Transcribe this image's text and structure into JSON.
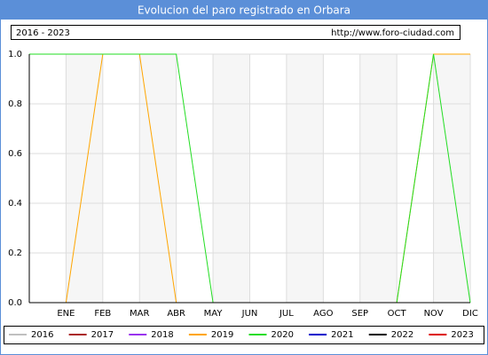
{
  "chart_data": {
    "type": "line",
    "title": "Evolucion del paro registrado en Orbara",
    "subtitle": "2016 - 2023",
    "source": "http://www.foro-ciudad.com",
    "categories": [
      null,
      "ENE",
      "FEB",
      "MAR",
      "ABR",
      "MAY",
      "JUN",
      "JUL",
      "AGO",
      "SEP",
      "OCT",
      "NOV",
      "DIC"
    ],
    "ylim": [
      0,
      1
    ],
    "yticks": [
      {
        "value": 0,
        "label": "0.0"
      },
      {
        "value": 0.2,
        "label": "0.2"
      },
      {
        "value": 0.4,
        "label": "0.4"
      },
      {
        "value": 0.6,
        "label": "0.6"
      },
      {
        "value": 0.8,
        "label": "0.8"
      },
      {
        "value": 1,
        "label": "1.0"
      }
    ],
    "grid": true,
    "legend": "bottom",
    "series": [
      {
        "name": "2016",
        "color": "#c0c0c0",
        "values": [
          null,
          null,
          null,
          null,
          null,
          null,
          null,
          null,
          null,
          null,
          null,
          null,
          null
        ]
      },
      {
        "name": "2017",
        "color": "#aa2222",
        "values": [
          null,
          null,
          null,
          null,
          null,
          null,
          null,
          null,
          null,
          null,
          null,
          null,
          null
        ]
      },
      {
        "name": "2018",
        "color": "#9933ee",
        "values": [
          null,
          null,
          null,
          null,
          null,
          null,
          null,
          null,
          null,
          null,
          null,
          null,
          null
        ]
      },
      {
        "name": "2019",
        "color": "#ffa500",
        "values": [
          0,
          0,
          1,
          1,
          0,
          0,
          0,
          0,
          0,
          0,
          0,
          1,
          1
        ]
      },
      {
        "name": "2020",
        "color": "#22dd22",
        "values": [
          1,
          1,
          1,
          1,
          1,
          0,
          0,
          0,
          0,
          0,
          0,
          1,
          0
        ]
      },
      {
        "name": "2021",
        "color": "#0000cc",
        "values": [
          null,
          null,
          null,
          null,
          null,
          null,
          null,
          null,
          null,
          null,
          null,
          null,
          null
        ]
      },
      {
        "name": "2022",
        "color": "#000000",
        "values": [
          null,
          null,
          null,
          null,
          null,
          null,
          null,
          null,
          null,
          null,
          null,
          null,
          null
        ]
      },
      {
        "name": "2023",
        "color": "#dd0000",
        "values": [
          null,
          null,
          null,
          null,
          null,
          null,
          null,
          null,
          null,
          null,
          null,
          null,
          null
        ]
      }
    ]
  }
}
